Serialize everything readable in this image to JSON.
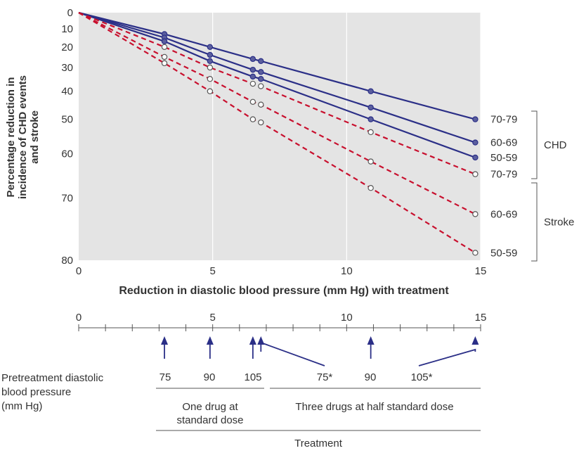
{
  "chart_data": {
    "type": "line",
    "xlabel": "Reduction in diastolic blood pressure (mm Hg) with treatment",
    "ylabel": "Percentage reduction in incidence of CHD events and stroke",
    "ylabel_lines": [
      "Percentage reduction in",
      "incidence of CHD events",
      "and stroke"
    ],
    "xlim": [
      0,
      15
    ],
    "ylim": [
      0,
      80
    ],
    "y_scale": "log(1 - y/100)",
    "x_ticks": [
      "0",
      "5",
      "10",
      "15"
    ],
    "y_ticks": [
      "0",
      "10",
      "20",
      "30",
      "40",
      "50",
      "60",
      "70",
      "80"
    ],
    "grid": "vertical",
    "series": [
      {
        "name": "70-79",
        "group": "CHD",
        "color": "#2b2f87",
        "style": "solid",
        "x": [
          0,
          3.2,
          4.9,
          6.5,
          6.8,
          10.9,
          14.8
        ],
        "y": [
          0,
          13,
          20,
          26,
          27,
          40,
          50
        ]
      },
      {
        "name": "60-69",
        "group": "CHD",
        "color": "#2b2f87",
        "style": "solid",
        "x": [
          0,
          3.2,
          4.9,
          6.5,
          6.8,
          10.9,
          14.8
        ],
        "y": [
          0,
          15,
          24,
          31,
          32,
          46,
          57
        ]
      },
      {
        "name": "50-59",
        "group": "CHD",
        "color": "#2b2f87",
        "style": "solid",
        "x": [
          0,
          3.2,
          4.9,
          6.5,
          6.8,
          10.9,
          14.8
        ],
        "y": [
          0,
          17,
          27,
          34,
          35,
          50,
          61
        ]
      },
      {
        "name": "70-79",
        "group": "Stroke",
        "color": "#c8102e",
        "style": "dashed",
        "x": [
          0,
          3.2,
          4.9,
          6.5,
          6.8,
          10.9,
          14.8
        ],
        "y": [
          0,
          20,
          30,
          37,
          38,
          54,
          65
        ]
      },
      {
        "name": "60-69",
        "group": "Stroke",
        "color": "#c8102e",
        "style": "dashed",
        "x": [
          0,
          3.2,
          4.9,
          6.5,
          6.8,
          10.9,
          14.8
        ],
        "y": [
          0,
          25,
          35,
          44,
          45,
          62,
          73
        ]
      },
      {
        "name": "50-59",
        "group": "Stroke",
        "color": "#c8102e",
        "style": "dashed",
        "x": [
          0,
          3.2,
          4.9,
          6.5,
          6.8,
          10.9,
          14.8
        ],
        "y": [
          0,
          28,
          40,
          50,
          51,
          68,
          79
        ]
      }
    ],
    "legend_groups": [
      {
        "label": "CHD",
        "labels": [
          "70-79",
          "60-69",
          "50-59"
        ]
      },
      {
        "label": "Stroke",
        "labels": [
          "70-79",
          "60-69",
          "50-59"
        ]
      }
    ]
  },
  "treatment_panel": {
    "axis_ticks": [
      "0",
      "5",
      "10",
      "15"
    ],
    "pressure_label_lines": [
      "Pretreatment diastolic",
      "blood pressure",
      "(mm Hg)"
    ],
    "pressures": [
      {
        "label": "75",
        "x": 3.2
      },
      {
        "label": "90",
        "x": 4.9
      },
      {
        "label": "105",
        "x": 6.5
      },
      {
        "label": "75*",
        "x": 6.8
      },
      {
        "label": "90",
        "x": 10.9
      },
      {
        "label": "105*",
        "x": 14.8
      }
    ],
    "group_one": [
      "One drug at",
      "standard dose"
    ],
    "group_three": "Three drugs at half standard dose",
    "footer": "Treatment"
  }
}
